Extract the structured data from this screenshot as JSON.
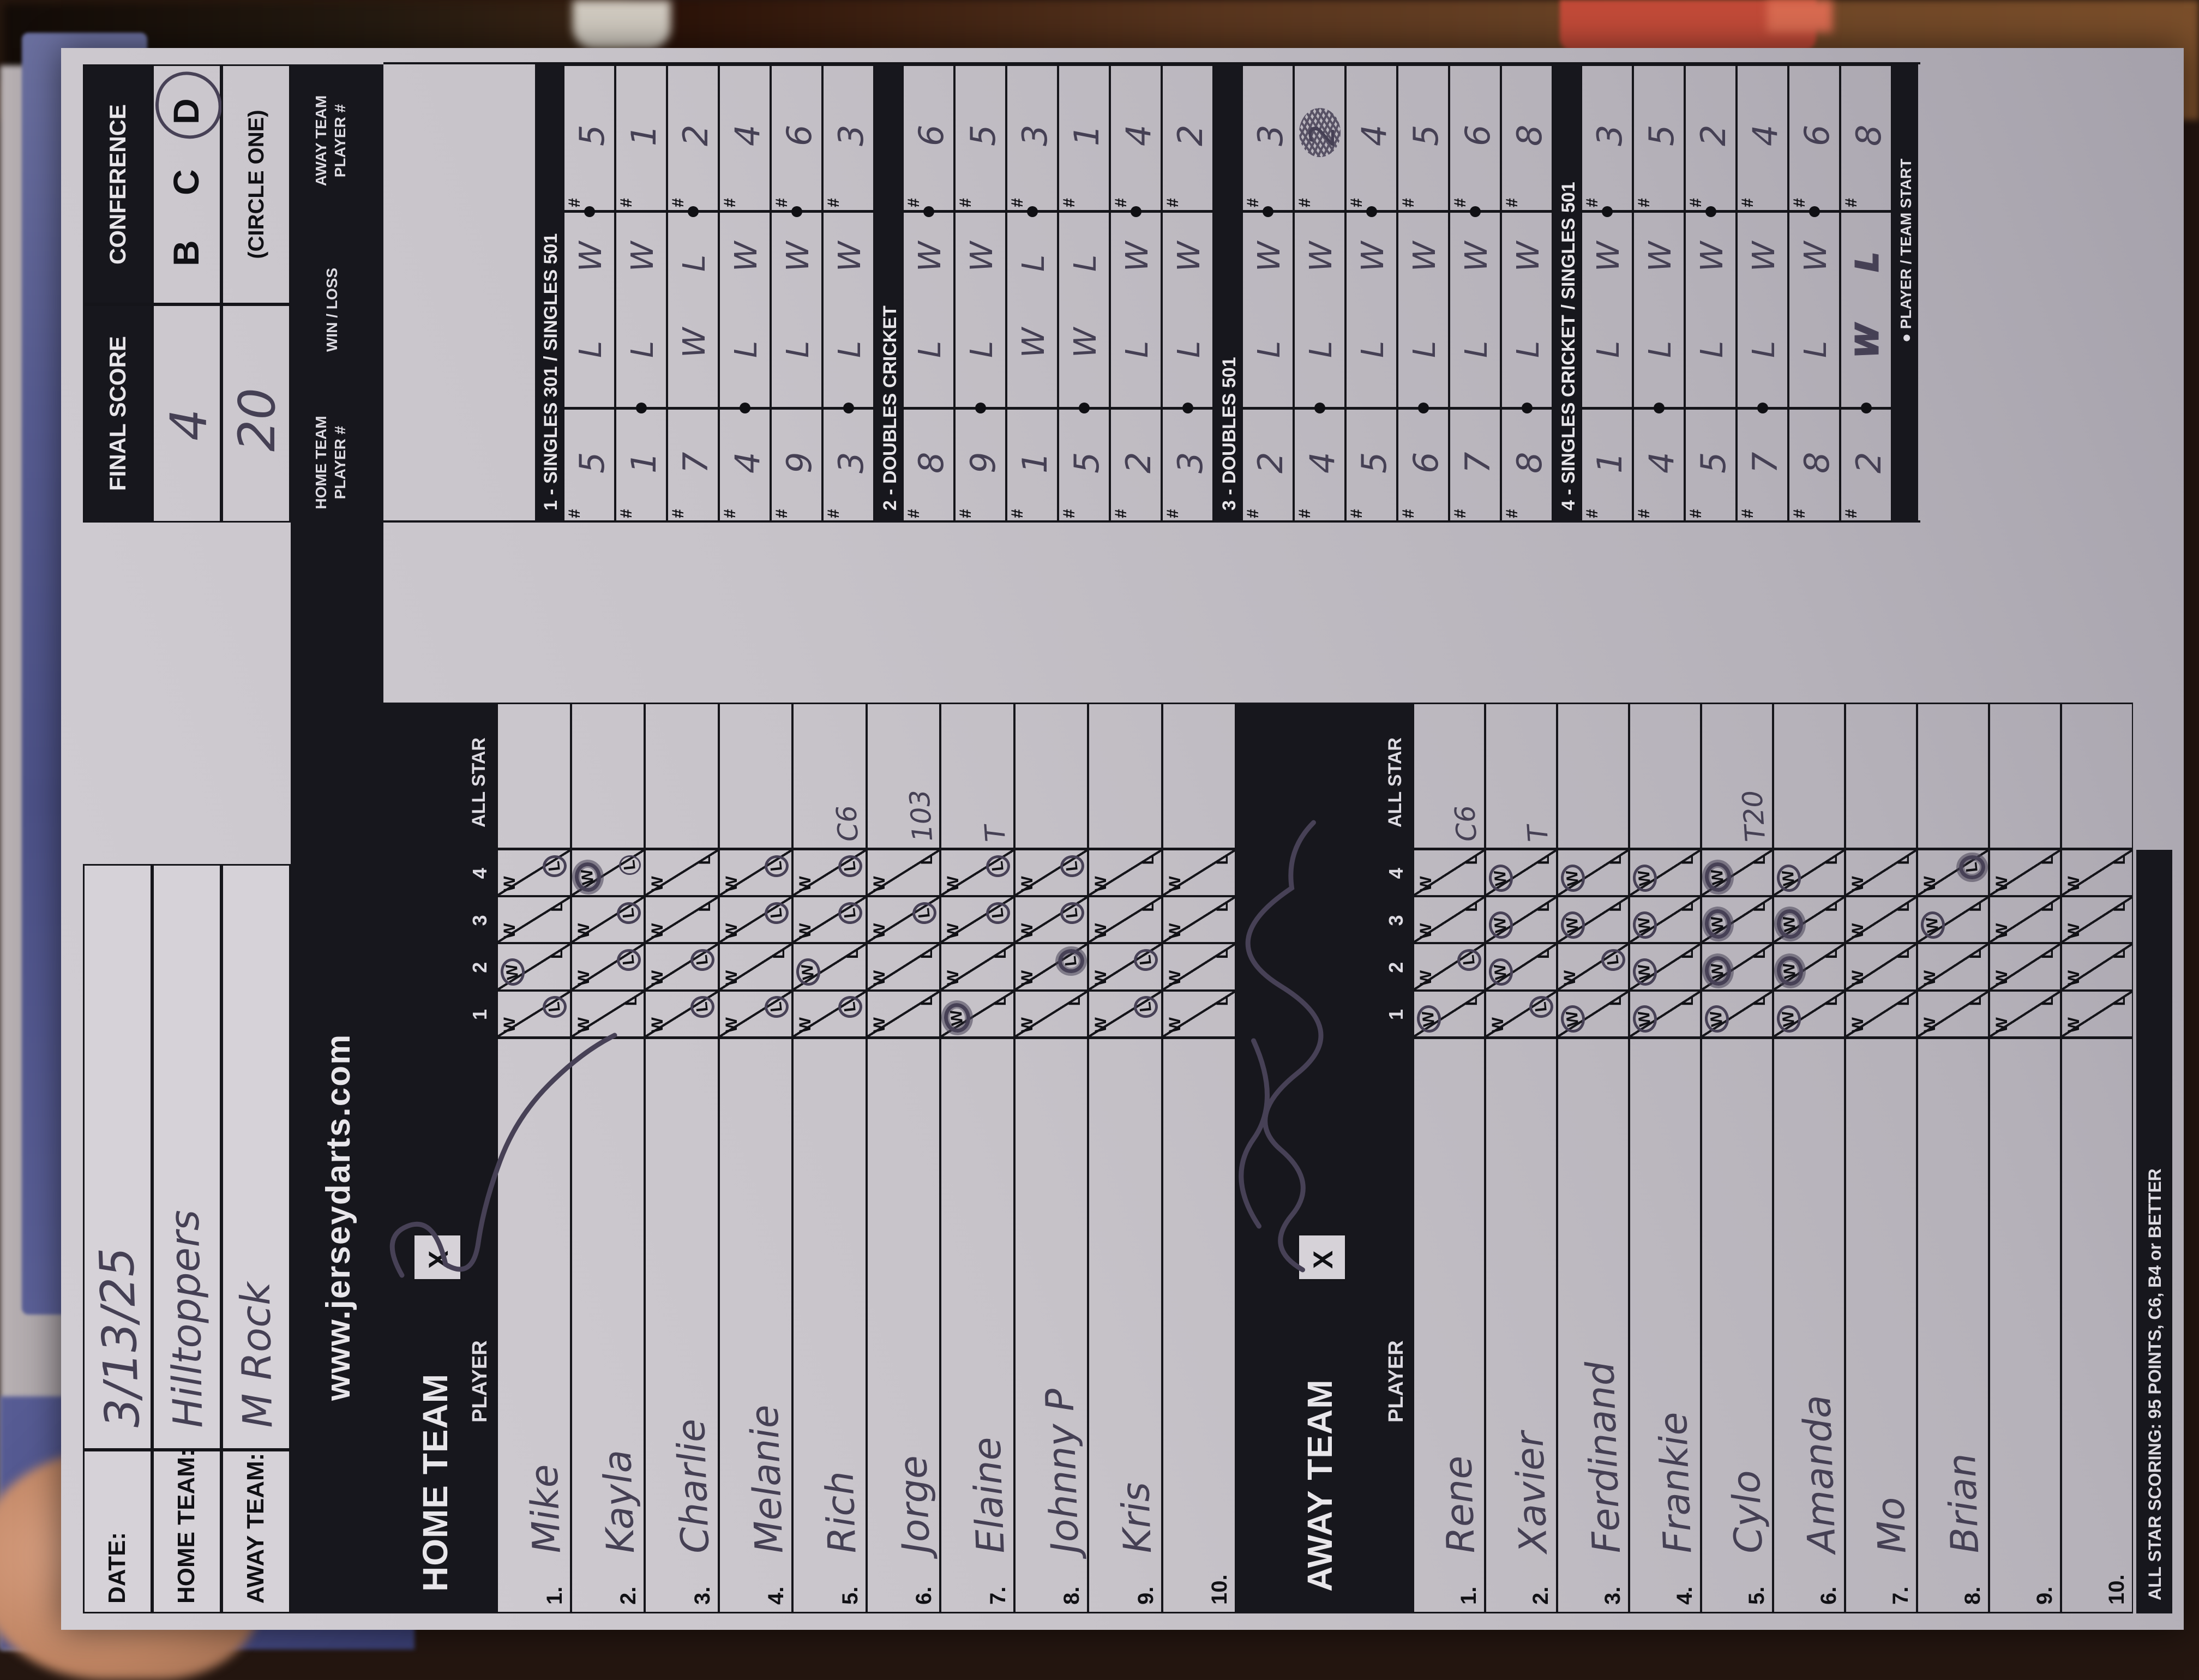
{
  "header": {
    "date_label": "DATE:",
    "date_value": "3/13/25",
    "home_team_label": "HOME TEAM:",
    "home_team_value": "Hilltoppers",
    "away_team_label": "AWAY TEAM:",
    "away_team_value": "M Rock",
    "final_score_label": "FINAL SCORE",
    "final_home_score": "4",
    "final_away_score": "20",
    "conference_label": "CONFERENCE",
    "conference_options": [
      "B",
      "C",
      "D"
    ],
    "conference_circled": "D",
    "circle_one_label": "(CIRCLE ONE)",
    "website": "www.jerseydarts.com"
  },
  "column_headers": {
    "player": "PLAYER",
    "game_cols": [
      "1",
      "2",
      "3",
      "4"
    ],
    "all_star": "ALL STAR",
    "x_mark": "X",
    "win": "W",
    "loss": "L",
    "hash": "#",
    "home_player_num": "HOME TEAM PLAYER #",
    "win_loss": "WIN / LOSS",
    "away_player_num": "AWAY TEAM PLAYER #"
  },
  "home_section": {
    "title": "HOME TEAM",
    "players": [
      {
        "num": "1.",
        "name": "Mike",
        "games": {
          "1": "L",
          "2": "W",
          "4": "L"
        },
        "all_star": ""
      },
      {
        "num": "2.",
        "name": "Kayla",
        "games": {
          "2": "L",
          "3": "L",
          "4": {
            "mark": "W",
            "style": "heavy",
            "extra": "L"
          }
        },
        "all_star": ""
      },
      {
        "num": "3.",
        "name": "Charlie",
        "games": {
          "1": "L",
          "2": "L"
        },
        "all_star": ""
      },
      {
        "num": "4.",
        "name": "Melanie",
        "games": {
          "1": "L",
          "3": "L",
          "4": "L"
        },
        "all_star": ""
      },
      {
        "num": "5.",
        "name": "Rich",
        "games": {
          "1": "L",
          "2": "W",
          "3": "L",
          "4": "L"
        },
        "all_star": "C6"
      },
      {
        "num": "6.",
        "name": "Jorge",
        "games": {
          "3": "L"
        },
        "all_star": "103"
      },
      {
        "num": "7.",
        "name": "Elaine",
        "games": {
          "1": {
            "mark": "W",
            "style": "heavy"
          },
          "3": "L",
          "4": "L"
        },
        "all_star": "T"
      },
      {
        "num": "8.",
        "name": "Johnny P",
        "games": {
          "2": {
            "mark": "L",
            "style": "heavy"
          },
          "3": "L",
          "4": "L"
        },
        "all_star": ""
      },
      {
        "num": "9.",
        "name": "Kris",
        "games": {
          "1": "L",
          "2": "L"
        },
        "all_star": ""
      },
      {
        "num": "10.",
        "name": "",
        "games": {},
        "all_star": ""
      }
    ]
  },
  "away_section": {
    "title": "AWAY TEAM",
    "players": [
      {
        "num": "1.",
        "name": "Rene",
        "games": {
          "1": "W",
          "2": "L"
        },
        "all_star": "C6"
      },
      {
        "num": "2.",
        "name": "Xavier",
        "games": {
          "1": "L",
          "2": "W",
          "3": "W",
          "4": "W"
        },
        "all_star": "T"
      },
      {
        "num": "3.",
        "name": "Ferdinand",
        "games": {
          "1": "W",
          "2": "L",
          "3": "W",
          "4": "W"
        },
        "all_star": ""
      },
      {
        "num": "4.",
        "name": "Frankie",
        "games": {
          "1": "W",
          "2": "W",
          "3": "W",
          "4": "W"
        },
        "all_star": ""
      },
      {
        "num": "5.",
        "name": "Cylo",
        "games": {
          "1": "W",
          "2": {
            "mark": "W",
            "style": "heavy"
          },
          "3": {
            "mark": "W",
            "style": "heavy"
          },
          "4": {
            "mark": "W",
            "style": "heavy"
          }
        },
        "all_star": "T20"
      },
      {
        "num": "6.",
        "name": "Amanda",
        "games": {
          "1": "W",
          "2": {
            "mark": "W",
            "style": "heavy"
          },
          "3": {
            "mark": "W",
            "style": "heavy"
          },
          "4": "W"
        },
        "all_star": ""
      },
      {
        "num": "7.",
        "name": "Mo",
        "games": {},
        "all_star": ""
      },
      {
        "num": "8.",
        "name": "Brian",
        "games": {
          "3": "W",
          "4": {
            "mark": "L",
            "style": "heavy"
          }
        },
        "all_star": ""
      },
      {
        "num": "9.",
        "name": "",
        "games": {},
        "all_star": ""
      },
      {
        "num": "10.",
        "name": "",
        "games": {},
        "all_star": ""
      }
    ]
  },
  "games_grid": {
    "sections": [
      {
        "title": "1 - SINGLES 301 / SINGLES 501",
        "rows": [
          {
            "home_num": "5",
            "home_res": "L",
            "away_res": "W",
            "away_num": "5",
            "dot": "away"
          },
          {
            "home_num": "1",
            "home_res": "L",
            "away_res": "W",
            "away_num": "1",
            "dot": "home"
          },
          {
            "home_num": "7",
            "home_res": "W",
            "away_res": "L",
            "away_num": "2",
            "dot": "away"
          },
          {
            "home_num": "4",
            "home_res": "L",
            "away_res": "W",
            "away_num": "4",
            "dot": "home"
          },
          {
            "home_num": "9",
            "home_res": "L",
            "away_res": "W",
            "away_num": "6",
            "dot": "away"
          },
          {
            "home_num": "3",
            "home_res": "L",
            "away_res": "W",
            "away_num": "3",
            "dot": "home"
          }
        ]
      },
      {
        "title": "2 - DOUBLES CRICKET",
        "rows": [
          {
            "home_num": "8",
            "home_res": "L",
            "away_res": "W",
            "away_num": "6",
            "dot": "away"
          },
          {
            "home_num": "9",
            "home_res": "L",
            "away_res": "W",
            "away_num": "5",
            "dot": "home"
          },
          {
            "home_num": "1",
            "home_res": "W",
            "away_res": "L",
            "away_num": "3",
            "dot": "away"
          },
          {
            "home_num": "5",
            "home_res": "W",
            "away_res": "L",
            "away_num": "1",
            "dot": "home"
          },
          {
            "home_num": "2",
            "home_res": "L",
            "away_res": "W",
            "away_num": "4",
            "dot": "away"
          },
          {
            "home_num": "3",
            "home_res": "L",
            "away_res": "W",
            "away_num": "2",
            "dot": "home"
          }
        ]
      },
      {
        "title": "3 - DOUBLES 501",
        "rows": [
          {
            "home_num": "2",
            "home_res": "L",
            "away_res": "W",
            "away_num": "3",
            "dot": "away"
          },
          {
            "home_num": "4",
            "home_res": "L",
            "away_res": "W",
            "away_num": "2",
            "dot": "home",
            "away_scribble": true
          },
          {
            "home_num": "5",
            "home_res": "L",
            "away_res": "W",
            "away_num": "4",
            "dot": "away"
          },
          {
            "home_num": "6",
            "home_res": "L",
            "away_res": "W",
            "away_num": "5",
            "dot": "home"
          },
          {
            "home_num": "7",
            "home_res": "L",
            "away_res": "W",
            "away_num": "6",
            "dot": "away"
          },
          {
            "home_num": "8",
            "home_res": "L",
            "away_res": "W",
            "away_num": "8",
            "dot": "home"
          }
        ]
      },
      {
        "title": "4 - SINGLES CRICKET / SINGLES 501",
        "rows": [
          {
            "home_num": "1",
            "home_res": "L",
            "away_res": "W",
            "away_num": "3",
            "dot": "away"
          },
          {
            "home_num": "4",
            "home_res": "L",
            "away_res": "W",
            "away_num": "5",
            "dot": "home"
          },
          {
            "home_num": "5",
            "home_res": "L",
            "away_res": "W",
            "away_num": "2",
            "dot": "away"
          },
          {
            "home_num": "7",
            "home_res": "L",
            "away_res": "W",
            "away_num": "4",
            "dot": "home"
          },
          {
            "home_num": "8",
            "home_res": "L",
            "away_res": "W",
            "away_num": "6",
            "dot": "away"
          },
          {
            "home_num": "2",
            "home_res": "W",
            "away_res": "L",
            "away_num": "8",
            "dot": "home",
            "heavy": true
          }
        ]
      }
    ],
    "start_legend": "● PLAYER / TEAM START"
  },
  "footer": {
    "all_star_note": "ALL STAR SCORING: 95 POINTS, C6, B4 or BETTER"
  },
  "colors": {
    "paper": "#cbc7cd",
    "bar_black": "#17171d",
    "pen": "#474156",
    "table_brown": "#58351e",
    "notebook_blue": "#565b90",
    "red_object": "#c14a38"
  }
}
